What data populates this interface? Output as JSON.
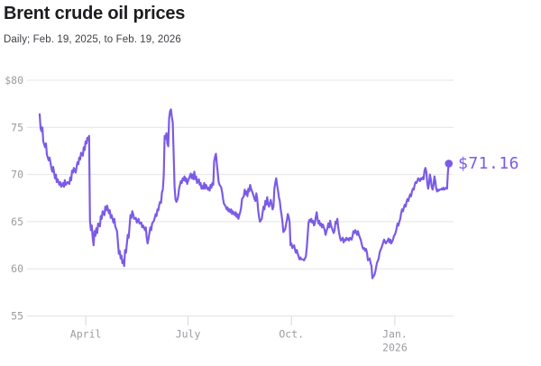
{
  "chart_data": {
    "type": "line",
    "title": "Brent crude oil prices",
    "subtitle": "Daily; Feb. 19, 2025, to Feb. 19, 2026",
    "y_axis": {
      "min": 55,
      "max": 80,
      "tick_values": [
        80,
        75,
        70,
        65,
        60,
        55
      ],
      "tick_labels": [
        "$80",
        "75",
        "70",
        "65",
        "60",
        "55"
      ],
      "grid": true
    },
    "x_axis": {
      "min_day": 0,
      "max_day": 365,
      "ticks": [
        {
          "day": 41,
          "label": "April"
        },
        {
          "day": 132,
          "label": "July"
        },
        {
          "day": 224,
          "label": "Oct."
        },
        {
          "day": 316,
          "label": "Jan.",
          "sublabel": "2026"
        }
      ]
    },
    "end_point": {
      "day": 364,
      "value": 71.16,
      "label": "$71.16"
    },
    "colors": {
      "line": "#7b5be6",
      "end_label": "#7b5be6",
      "grid": "#e4e4e8",
      "tick": "#d9d9de",
      "axis_text": "#9b9ba2",
      "title_text": "#1d1d21",
      "subtitle_text": "#3f3f46"
    },
    "points": [
      [
        0,
        76.4
      ],
      [
        0.8,
        74.9
      ],
      [
        1.6,
        74.6
      ],
      [
        2.4,
        75.0
      ],
      [
        3.2,
        73.5
      ],
      [
        4.8,
        72.9
      ],
      [
        5.6,
        73.3
      ],
      [
        6.4,
        72.1
      ],
      [
        8,
        71.5
      ],
      [
        8.8,
        71.8
      ],
      [
        10.4,
        70.7
      ],
      [
        11.2,
        70.3
      ],
      [
        12,
        70.8
      ],
      [
        13.6,
        69.6
      ],
      [
        14.4,
        70.0
      ],
      [
        15.2,
        69.2
      ],
      [
        16,
        69.5
      ],
      [
        17.6,
        68.9
      ],
      [
        18.4,
        69.2
      ],
      [
        19.2,
        68.7
      ],
      [
        20.8,
        69.1
      ],
      [
        21.6,
        68.7
      ],
      [
        22.4,
        69.4
      ],
      [
        23.2,
        68.9
      ],
      [
        24.8,
        69.2
      ],
      [
        26.4,
        69.0
      ],
      [
        27.2,
        69.7
      ],
      [
        28,
        69.4
      ],
      [
        28.8,
        70.4
      ],
      [
        29.6,
        70.2
      ],
      [
        30.4,
        70.7
      ],
      [
        32,
        70.2
      ],
      [
        33.6,
        71.3
      ],
      [
        34.4,
        71.1
      ],
      [
        35.2,
        71.8
      ],
      [
        36,
        71.6
      ],
      [
        36.8,
        72.3
      ],
      [
        38.4,
        72.0
      ],
      [
        39.2,
        72.9
      ],
      [
        40,
        72.6
      ],
      [
        40.8,
        73.5
      ],
      [
        41.6,
        73.3
      ],
      [
        42.4,
        73.9
      ],
      [
        43.2,
        73.7
      ],
      [
        44,
        74.1
      ],
      [
        44.8,
        65.1
      ],
      [
        45.6,
        64.1
      ],
      [
        46.4,
        64.6
      ],
      [
        47.2,
        63.3
      ],
      [
        48,
        62.5
      ],
      [
        48.8,
        64.0
      ],
      [
        49.6,
        63.5
      ],
      [
        50.4,
        64.3
      ],
      [
        51.2,
        63.8
      ],
      [
        52,
        64.8
      ],
      [
        53.6,
        64.5
      ],
      [
        54.4,
        65.6
      ],
      [
        55.2,
        65.3
      ],
      [
        56,
        66.1
      ],
      [
        57.6,
        65.7
      ],
      [
        58.4,
        66.6
      ],
      [
        59.2,
        66.2
      ],
      [
        60,
        66.7
      ],
      [
        61.6,
        65.9
      ],
      [
        62.4,
        66.2
      ],
      [
        63.2,
        65.4
      ],
      [
        64,
        65.7
      ],
      [
        65.6,
        64.9
      ],
      [
        66.4,
        65.3
      ],
      [
        67.2,
        64.5
      ],
      [
        68.8,
        64.0
      ],
      [
        70.4,
        61.6
      ],
      [
        71.2,
        61.9
      ],
      [
        72,
        61.1
      ],
      [
        72.8,
        61.4
      ],
      [
        73.6,
        60.6
      ],
      [
        74.4,
        60.9
      ],
      [
        75.2,
        60.3
      ],
      [
        76,
        62.0
      ],
      [
        76.8,
        61.7
      ],
      [
        78.4,
        63.6
      ],
      [
        79.2,
        63.3
      ],
      [
        80,
        64.5
      ],
      [
        80.8,
        65.7
      ],
      [
        81.6,
        65.4
      ],
      [
        82.4,
        66.1
      ],
      [
        83.2,
        65.8
      ],
      [
        84,
        65.3
      ],
      [
        85.6,
        65.4
      ],
      [
        86.4,
        64.9
      ],
      [
        87.2,
        65.1
      ],
      [
        88,
        65.3
      ],
      [
        88.8,
        64.8
      ],
      [
        90.4,
        64.9
      ],
      [
        91.2,
        64.4
      ],
      [
        92,
        64.6
      ],
      [
        93.6,
        64.1
      ],
      [
        94.4,
        64.4
      ],
      [
        95.2,
        63.3
      ],
      [
        96,
        62.7
      ],
      [
        96.8,
        63.2
      ],
      [
        97.6,
        63.8
      ],
      [
        98.4,
        64.4
      ],
      [
        99.2,
        64.1
      ],
      [
        100,
        64.8
      ],
      [
        101.6,
        65.1
      ],
      [
        102.4,
        65.4
      ],
      [
        103.2,
        65.8
      ],
      [
        104,
        65.6
      ],
      [
        104.8,
        66.3
      ],
      [
        105.6,
        66.2
      ],
      [
        106.4,
        66.8
      ],
      [
        107.2,
        67.1
      ],
      [
        108,
        67.0
      ],
      [
        108.8,
        68.1
      ],
      [
        109.6,
        68.4
      ],
      [
        110.4,
        69.9
      ],
      [
        111.2,
        74.1
      ],
      [
        112,
        73.8
      ],
      [
        112.8,
        74.4
      ],
      [
        113.6,
        73.3
      ],
      [
        114.4,
        73.0
      ],
      [
        115.2,
        76.0
      ],
      [
        116,
        76.7
      ],
      [
        116.8,
        76.9
      ],
      [
        117.6,
        76.1
      ],
      [
        118.4,
        75.5
      ],
      [
        119.2,
        72.2
      ],
      [
        120,
        68.7
      ],
      [
        120.8,
        67.4
      ],
      [
        121.6,
        67.1
      ],
      [
        122.4,
        67.3
      ],
      [
        123.2,
        67.7
      ],
      [
        124,
        68.5
      ],
      [
        125.6,
        69.3
      ],
      [
        126.4,
        69.1
      ],
      [
        127.2,
        69.6
      ],
      [
        128,
        69.4
      ],
      [
        128.8,
        69.8
      ],
      [
        129.6,
        69.3
      ],
      [
        130.4,
        69.6
      ],
      [
        131.2,
        69.0
      ],
      [
        132,
        69.3
      ],
      [
        133.6,
        69.8
      ],
      [
        134.4,
        70.1
      ],
      [
        135.2,
        69.6
      ],
      [
        136,
        70.0
      ],
      [
        136.8,
        69.5
      ],
      [
        137.6,
        70.3
      ],
      [
        138.4,
        69.5
      ],
      [
        139.2,
        69.8
      ],
      [
        140,
        69.1
      ],
      [
        141.6,
        69.5
      ],
      [
        142.4,
        68.9
      ],
      [
        143.2,
        69.1
      ],
      [
        144,
        68.5
      ],
      [
        144.8,
        68.8
      ],
      [
        145.6,
        68.5
      ],
      [
        146.4,
        69.1
      ],
      [
        147.2,
        68.5
      ],
      [
        148,
        68.9
      ],
      [
        149.6,
        68.4
      ],
      [
        150.4,
        68.6
      ],
      [
        151.2,
        68.3
      ],
      [
        152,
        68.9
      ],
      [
        152.8,
        68.6
      ],
      [
        153.6,
        69.1
      ],
      [
        154.4,
        68.9
      ],
      [
        155.2,
        71.4
      ],
      [
        156,
        71.9
      ],
      [
        156.8,
        72.2
      ],
      [
        157.6,
        71.1
      ],
      [
        158.4,
        70.2
      ],
      [
        159.2,
        69.2
      ],
      [
        160,
        68.9
      ],
      [
        160.8,
        68.8
      ],
      [
        161.6,
        68.6
      ],
      [
        162.4,
        68.1
      ],
      [
        163.2,
        67.4
      ],
      [
        164,
        66.9
      ],
      [
        165.6,
        66.6
      ],
      [
        166.4,
        66.3
      ],
      [
        167.2,
        66.5
      ],
      [
        168,
        66.1
      ],
      [
        168.8,
        66.3
      ],
      [
        169.6,
        66.0
      ],
      [
        170.4,
        66.3
      ],
      [
        171.2,
        65.8
      ],
      [
        172,
        66.1
      ],
      [
        173.6,
        65.7
      ],
      [
        174.4,
        66.0
      ],
      [
        175.2,
        65.5
      ],
      [
        176,
        65.8
      ],
      [
        176.8,
        65.3
      ],
      [
        177.6,
        65.7
      ],
      [
        178.4,
        66.0
      ],
      [
        179.2,
        66.5
      ],
      [
        180,
        67.4
      ],
      [
        181.6,
        67.7
      ],
      [
        182.4,
        68.4
      ],
      [
        183.2,
        67.9
      ],
      [
        184,
        68.2
      ],
      [
        184.8,
        67.7
      ],
      [
        185.6,
        68.5
      ],
      [
        186.4,
        68.2
      ],
      [
        187.2,
        68.9
      ],
      [
        188,
        68.5
      ],
      [
        189.6,
        68.0
      ],
      [
        191.2,
        67.4
      ],
      [
        192,
        67.2
      ],
      [
        192.8,
        68.0
      ],
      [
        193.6,
        67.4
      ],
      [
        194.4,
        66.2
      ],
      [
        195.2,
        65.5
      ],
      [
        196,
        65.0
      ],
      [
        197.6,
        65.3
      ],
      [
        198.4,
        66.0
      ],
      [
        199.2,
        66.6
      ],
      [
        200,
        66.3
      ],
      [
        200.8,
        67.2
      ],
      [
        201.6,
        66.8
      ],
      [
        202.4,
        67.6
      ],
      [
        203.2,
        66.9
      ],
      [
        204,
        66.6
      ],
      [
        205.6,
        67.3
      ],
      [
        206.4,
        66.8
      ],
      [
        207.2,
        66.3
      ],
      [
        208,
        66.6
      ],
      [
        208.8,
        68.5
      ],
      [
        209.6,
        69.1
      ],
      [
        210.4,
        69.6
      ],
      [
        211.2,
        68.9
      ],
      [
        212,
        68.3
      ],
      [
        212.8,
        67.6
      ],
      [
        213.6,
        67.2
      ],
      [
        214.4,
        66.3
      ],
      [
        215.2,
        65.7
      ],
      [
        216,
        64.9
      ],
      [
        216.8,
        63.9
      ],
      [
        218.4,
        64.2
      ],
      [
        219.2,
        64.7
      ],
      [
        220,
        65.2
      ],
      [
        220.8,
        65.8
      ],
      [
        221.6,
        65.5
      ],
      [
        222.4,
        64.9
      ],
      [
        223.2,
        62.5
      ],
      [
        224,
        62.7
      ],
      [
        224.8,
        62.2
      ],
      [
        226.4,
        62.5
      ],
      [
        227.2,
        62.0
      ],
      [
        228,
        61.7
      ],
      [
        228.8,
        62.0
      ],
      [
        229.6,
        61.6
      ],
      [
        230.4,
        61.3
      ],
      [
        231.2,
        61.0
      ],
      [
        232,
        61.2
      ],
      [
        232.8,
        61.0
      ],
      [
        234.4,
        61.0
      ],
      [
        235.2,
        60.9
      ],
      [
        236,
        61.1
      ],
      [
        236.8,
        61.3
      ],
      [
        237.6,
        62.2
      ],
      [
        238.4,
        63.5
      ],
      [
        239.2,
        64.9
      ],
      [
        240,
        65.2
      ],
      [
        240.8,
        65.0
      ],
      [
        241.6,
        65.3
      ],
      [
        242.4,
        64.9
      ],
      [
        243.2,
        65.1
      ],
      [
        244,
        64.6
      ],
      [
        244.8,
        64.8
      ],
      [
        245.6,
        65.5
      ],
      [
        246.4,
        66.0
      ],
      [
        247.2,
        65.3
      ],
      [
        248,
        64.8
      ],
      [
        248.8,
        65.1
      ],
      [
        249.6,
        64.6
      ],
      [
        250.4,
        64.8
      ],
      [
        251.2,
        64.4
      ],
      [
        252,
        64.7
      ],
      [
        253.6,
        64.1
      ],
      [
        254.4,
        63.6
      ],
      [
        255.2,
        64.0
      ],
      [
        256,
        64.3
      ],
      [
        256.8,
        64.8
      ],
      [
        257.6,
        64.4
      ],
      [
        258.4,
        65.1
      ],
      [
        259.2,
        64.6
      ],
      [
        260,
        64.3
      ],
      [
        261.6,
        63.8
      ],
      [
        262.4,
        64.1
      ],
      [
        263.2,
        65.0
      ],
      [
        264,
        64.8
      ],
      [
        264.8,
        65.3
      ],
      [
        265.6,
        64.4
      ],
      [
        266.4,
        63.8
      ],
      [
        267.2,
        63.3
      ],
      [
        268,
        63.0
      ],
      [
        269.6,
        63.3
      ],
      [
        270.4,
        62.8
      ],
      [
        271.2,
        63.1
      ],
      [
        272,
        63.0
      ],
      [
        272.8,
        63.3
      ],
      [
        273.6,
        63.1
      ],
      [
        274.4,
        63.2
      ],
      [
        275.2,
        63.0
      ],
      [
        276,
        63.3
      ],
      [
        277.6,
        63.1
      ],
      [
        278.4,
        63.5
      ],
      [
        279.2,
        64.0
      ],
      [
        280,
        63.8
      ],
      [
        280.8,
        64.1
      ],
      [
        281.6,
        63.9
      ],
      [
        282.4,
        63.6
      ],
      [
        283.2,
        64.0
      ],
      [
        284,
        63.6
      ],
      [
        285.6,
        63.1
      ],
      [
        286.4,
        62.7
      ],
      [
        287.2,
        62.3
      ],
      [
        288,
        62.1
      ],
      [
        288.8,
        62.2
      ],
      [
        289.6,
        61.9
      ],
      [
        290.4,
        62.1
      ],
      [
        291.2,
        61.7
      ],
      [
        292,
        60.9
      ],
      [
        293.6,
        61.1
      ],
      [
        294.4,
        60.6
      ],
      [
        295.2,
        60.3
      ],
      [
        296,
        59.0
      ],
      [
        296.8,
        59.2
      ],
      [
        297.6,
        59.3
      ],
      [
        298.4,
        59.6
      ],
      [
        299.2,
        60.1
      ],
      [
        300,
        60.6
      ],
      [
        301.6,
        61.1
      ],
      [
        302.4,
        61.7
      ],
      [
        303.2,
        62.0
      ],
      [
        304,
        62.2
      ],
      [
        304.8,
        62.5
      ],
      [
        305.6,
        62.8
      ],
      [
        306.4,
        63.1
      ],
      [
        307.2,
        62.9
      ],
      [
        308,
        62.7
      ],
      [
        309.6,
        63.0
      ],
      [
        310.4,
        63.2
      ],
      [
        311.2,
        62.8
      ],
      [
        312,
        63.1
      ],
      [
        312.8,
        62.7
      ],
      [
        313.6,
        62.9
      ],
      [
        314.4,
        63.1
      ],
      [
        315.2,
        63.5
      ],
      [
        316,
        63.6
      ],
      [
        316.8,
        63.9
      ],
      [
        317.6,
        64.3
      ],
      [
        318.4,
        64.8
      ],
      [
        319.2,
        64.6
      ],
      [
        320,
        65.0
      ],
      [
        320.8,
        65.3
      ],
      [
        321.6,
        65.9
      ],
      [
        322.4,
        66.3
      ],
      [
        323.2,
        66.1
      ],
      [
        324,
        66.5
      ],
      [
        324.8,
        66.8
      ],
      [
        325.6,
        66.6
      ],
      [
        326.4,
        67.1
      ],
      [
        327.2,
        67.4
      ],
      [
        328,
        67.2
      ],
      [
        328.8,
        67.6
      ],
      [
        329.6,
        67.9
      ],
      [
        330.4,
        67.7
      ],
      [
        331.2,
        68.2
      ],
      [
        332,
        68.5
      ],
      [
        332.8,
        68.4
      ],
      [
        333.6,
        68.9
      ],
      [
        334.4,
        69.2
      ],
      [
        335.2,
        69.1
      ],
      [
        336,
        69.3
      ],
      [
        336.8,
        69.6
      ],
      [
        337.6,
        69.5
      ],
      [
        338.4,
        69.3
      ],
      [
        339.2,
        69.6
      ],
      [
        340,
        69.5
      ],
      [
        340.8,
        69.7
      ],
      [
        341.6,
        69.5
      ],
      [
        342.4,
        70.4
      ],
      [
        343.2,
        70.7
      ],
      [
        344,
        70.3
      ],
      [
        344.8,
        69.2
      ],
      [
        345.6,
        68.5
      ],
      [
        346.4,
        69.0
      ],
      [
        347.2,
        70.0
      ],
      [
        348,
        69.5
      ],
      [
        348.8,
        68.7
      ],
      [
        349.6,
        68.4
      ],
      [
        350.4,
        68.9
      ],
      [
        351.2,
        69.8
      ],
      [
        352,
        69.3
      ],
      [
        352.8,
        68.5
      ],
      [
        353.6,
        68.2
      ],
      [
        354.4,
        68.4
      ],
      [
        355.2,
        68.3
      ],
      [
        356,
        68.4
      ],
      [
        356.8,
        68.4
      ],
      [
        357.6,
        68.5
      ],
      [
        358.4,
        68.4
      ],
      [
        359.2,
        68.6
      ],
      [
        360,
        68.4
      ],
      [
        360.8,
        68.5
      ],
      [
        361.6,
        68.6
      ],
      [
        362.4,
        68.5
      ],
      [
        363.2,
        70.3
      ],
      [
        364,
        71.16
      ]
    ]
  }
}
